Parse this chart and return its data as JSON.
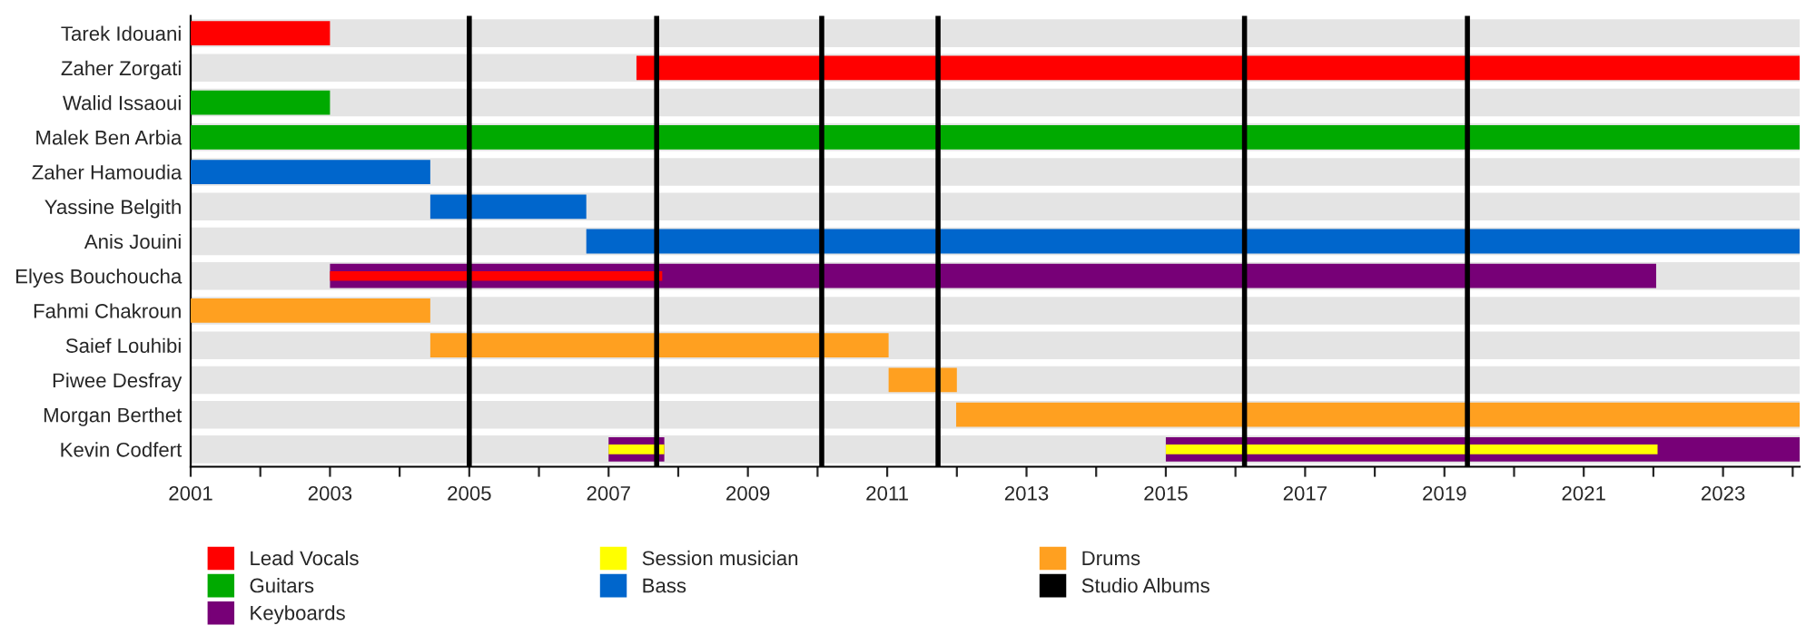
{
  "chart_data": {
    "type": "bar",
    "orientation": "horizontal",
    "categories": [
      "Tarek Idouani",
      "Zaher Zorgati",
      "Walid Issaoui",
      "Malek Ben Arbia",
      "Zaher Hamoudia",
      "Yassine Belgith",
      "Anis Jouini",
      "Elyes Bouchoucha",
      "Fahmi Chakroun",
      "Saief Louhibi",
      "Piwee Desfray",
      "Morgan Berthet",
      "Kevin Codfert"
    ],
    "series": [
      {
        "name": "Lead Vocals",
        "color": "#ff0000",
        "base": [
          2001,
          2007.4,
          null,
          null,
          null,
          null,
          null,
          2003,
          null,
          null,
          null,
          null,
          null
        ],
        "values": [
          2,
          16.7,
          null,
          null,
          null,
          null,
          null,
          4.77,
          null,
          null,
          null,
          null,
          null
        ]
      },
      {
        "name": "Guitars",
        "color": "#00aa00",
        "base": [
          null,
          null,
          2001,
          2001,
          null,
          null,
          null,
          null,
          null,
          null,
          null,
          null,
          null
        ],
        "values": [
          null,
          null,
          2,
          23.1,
          null,
          null,
          null,
          null,
          null,
          null,
          null,
          null,
          null
        ]
      },
      {
        "name": "Keyboards",
        "color": "#770077",
        "base": [
          null,
          null,
          null,
          null,
          null,
          null,
          null,
          2003,
          null,
          null,
          null,
          null,
          2007
        ],
        "values": [
          null,
          null,
          null,
          null,
          null,
          null,
          null,
          19.04,
          null,
          null,
          null,
          null,
          0.8
        ]
      },
      {
        "color": "#770077",
        "base": [
          null,
          null,
          null,
          null,
          null,
          null,
          null,
          null,
          null,
          null,
          null,
          null,
          2015
        ],
        "values": [
          null,
          null,
          null,
          null,
          null,
          null,
          null,
          null,
          null,
          null,
          null,
          null,
          9.1
        ]
      },
      {
        "name": "Session musician",
        "color": "#ffff00",
        "base": [
          null,
          null,
          null,
          null,
          null,
          null,
          null,
          null,
          null,
          null,
          null,
          null,
          2007
        ],
        "values": [
          null,
          null,
          null,
          null,
          null,
          null,
          null,
          null,
          null,
          null,
          null,
          null,
          0.8
        ]
      },
      {
        "color": "#ffff00",
        "base": [
          null,
          null,
          null,
          null,
          null,
          null,
          null,
          null,
          null,
          null,
          null,
          null,
          2015
        ],
        "values": [
          null,
          null,
          null,
          null,
          null,
          null,
          null,
          null,
          null,
          null,
          null,
          null,
          7.06
        ]
      },
      {
        "name": "Bass",
        "color": "#0066cc",
        "base": [
          null,
          null,
          null,
          null,
          2001,
          2004.44,
          2006.68,
          null,
          null,
          null,
          null,
          null,
          null
        ],
        "values": [
          null,
          null,
          null,
          null,
          3.44,
          2.24,
          17.42,
          null,
          null,
          null,
          null,
          null,
          null
        ]
      },
      {
        "name": "Drums",
        "color": "#ffa020",
        "base": [
          null,
          null,
          null,
          null,
          null,
          null,
          null,
          null,
          2001,
          2004.44,
          2011.02,
          2011.99,
          null
        ],
        "values": [
          null,
          null,
          null,
          null,
          null,
          null,
          null,
          null,
          3.44,
          6.58,
          0.98,
          12.11,
          null
        ]
      }
    ],
    "ref_lines": [
      {
        "axis": "x",
        "value": 2005,
        "label": "Studio Albums",
        "color": "#000000"
      },
      {
        "axis": "x",
        "value": 2007.69,
        "color": "#000000"
      },
      {
        "axis": "x",
        "value": 2010.06,
        "color": "#000000"
      },
      {
        "axis": "x",
        "value": 2011.73,
        "color": "#000000"
      },
      {
        "axis": "x",
        "value": 2016.13,
        "color": "#000000"
      },
      {
        "axis": "x",
        "value": 2019.33,
        "color": "#000000"
      }
    ],
    "xlim": [
      2001,
      2024.1
    ],
    "xticks": [
      2001,
      {
        "value": 2002,
        "label": null
      },
      2003,
      {
        "value": 2004,
        "label": null
      },
      2005,
      {
        "value": 2006,
        "label": null
      },
      2007,
      {
        "value": 2008,
        "label": null
      },
      2009,
      {
        "value": 2010,
        "label": null
      },
      2011,
      {
        "value": 2012,
        "label": null
      },
      2013,
      {
        "value": 2014,
        "label": null
      },
      2015,
      {
        "value": 2016,
        "label": null
      },
      2017,
      {
        "value": 2018,
        "label": null
      },
      2019,
      {
        "value": 2020,
        "label": null
      },
      2021,
      {
        "value": 2022,
        "label": null
      },
      2023,
      {
        "value": 2024,
        "label": null
      }
    ],
    "grid": "y",
    "legend": "bottom"
  }
}
